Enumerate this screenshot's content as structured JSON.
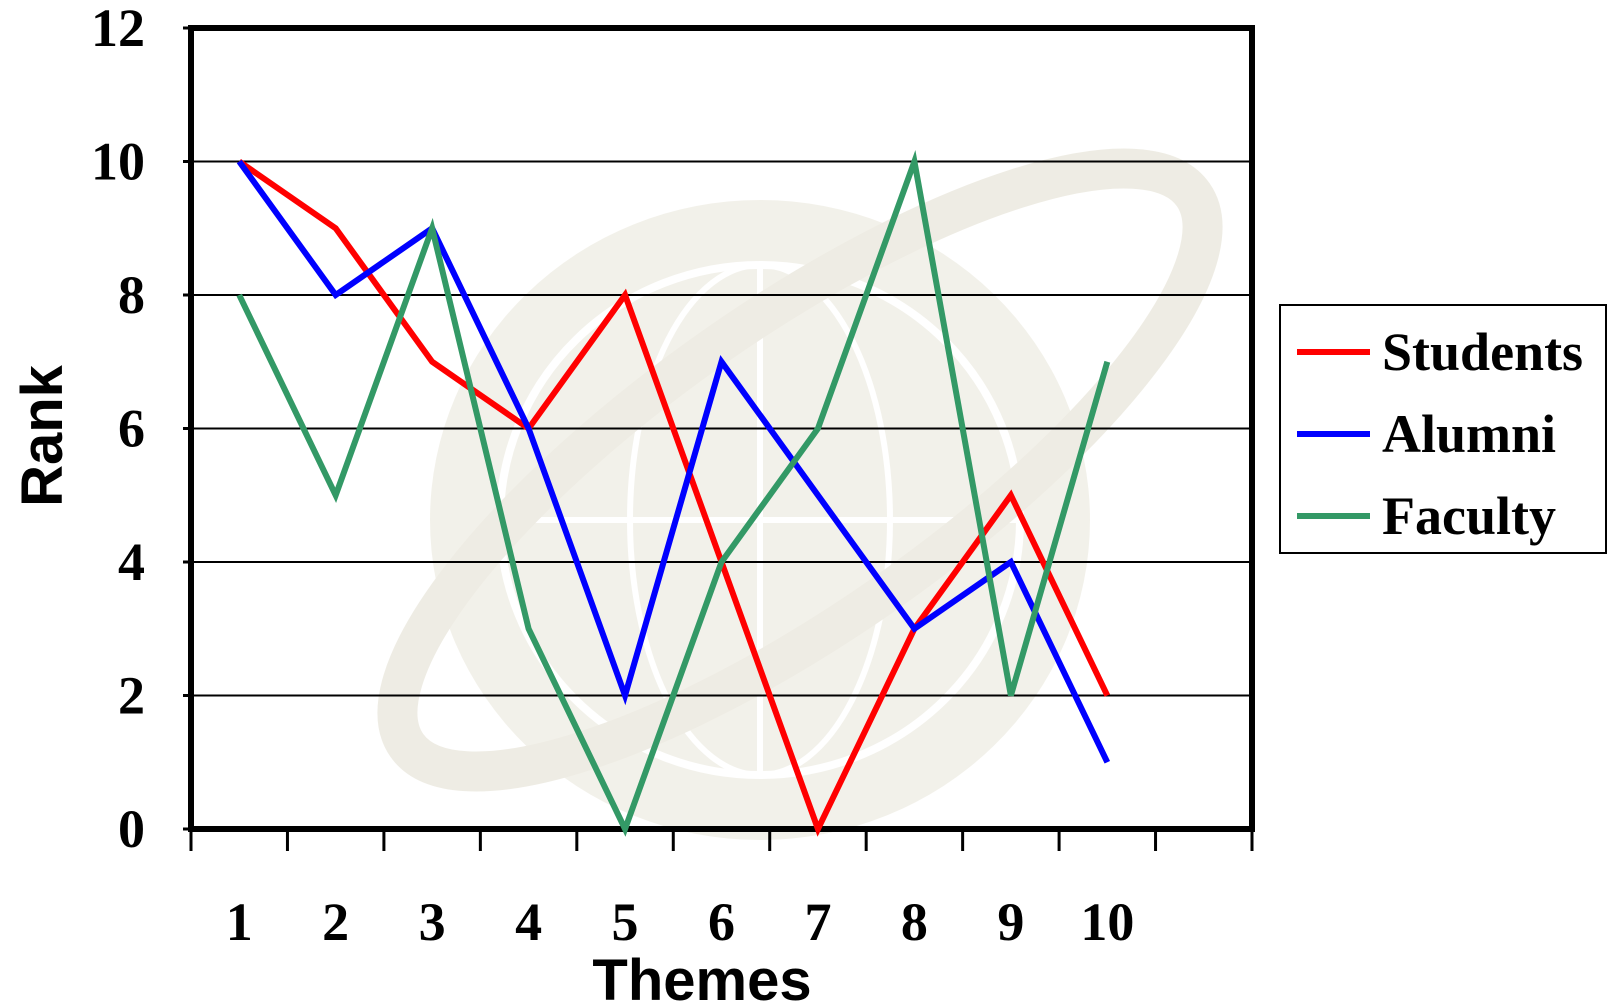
{
  "chart_data": {
    "type": "line",
    "title": "",
    "xlabel": "Themes",
    "ylabel": "Rank",
    "categories": [
      "1",
      "2",
      "3",
      "4",
      "5",
      "6",
      "7",
      "8",
      "9",
      "10"
    ],
    "ylim": [
      0,
      12
    ],
    "yticks": [
      "0",
      "2",
      "4",
      "6",
      "8",
      "10",
      "12"
    ],
    "grid": "horizontal",
    "legend_position": "right",
    "series": [
      {
        "name": "Students",
        "color": "#ff0000",
        "values": [
          10,
          9,
          7,
          6,
          8,
          4,
          0,
          3,
          5,
          2
        ]
      },
      {
        "name": "Alumni",
        "color": "#0000ff",
        "values": [
          10,
          8,
          9,
          6,
          2,
          7,
          5,
          3,
          4,
          1
        ]
      },
      {
        "name": "Faculty",
        "color": "#339966",
        "values": [
          8,
          5,
          9,
          3,
          0,
          4,
          6,
          10,
          2,
          7
        ]
      }
    ]
  }
}
